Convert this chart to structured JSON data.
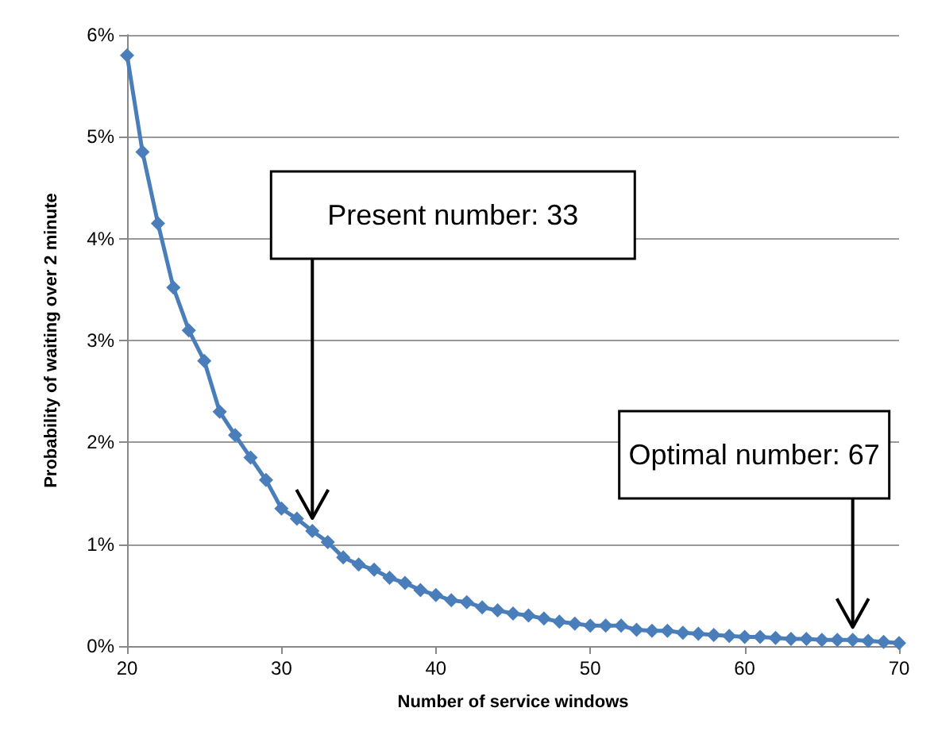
{
  "chart_data": {
    "type": "line",
    "xlabel": "Number of service windows",
    "ylabel": "Probability of waiting over 2 minute",
    "x": [
      20,
      21,
      22,
      23,
      24,
      25,
      26,
      27,
      28,
      29,
      30,
      31,
      32,
      33,
      34,
      35,
      36,
      37,
      38,
      39,
      40,
      41,
      42,
      43,
      44,
      45,
      46,
      47,
      48,
      49,
      50,
      51,
      52,
      53,
      54,
      55,
      56,
      57,
      58,
      59,
      60,
      61,
      62,
      63,
      64,
      65,
      66,
      67,
      68,
      69,
      70
    ],
    "series": [
      {
        "color": "#4a7ebb",
        "values": [
          5.8,
          4.85,
          4.15,
          3.52,
          3.1,
          2.8,
          2.3,
          2.07,
          1.85,
          1.63,
          1.35,
          1.25,
          1.13,
          1.02,
          0.87,
          0.8,
          0.75,
          0.67,
          0.62,
          0.55,
          0.5,
          0.45,
          0.43,
          0.38,
          0.35,
          0.32,
          0.3,
          0.27,
          0.24,
          0.22,
          0.2,
          0.2,
          0.2,
          0.16,
          0.15,
          0.15,
          0.13,
          0.12,
          0.11,
          0.1,
          0.09,
          0.09,
          0.08,
          0.07,
          0.07,
          0.06,
          0.06,
          0.06,
          0.05,
          0.04,
          0.03
        ]
      }
    ],
    "xlim": [
      20,
      70
    ],
    "xticks": [
      20,
      30,
      40,
      50,
      60,
      70
    ],
    "ylim": [
      0,
      6
    ],
    "yticks": [
      {
        "value": 0,
        "label": "0%"
      },
      {
        "value": 1,
        "label": "1%"
      },
      {
        "value": 2,
        "label": "2%"
      },
      {
        "value": 3,
        "label": "3%"
      },
      {
        "value": 4,
        "label": "4%"
      },
      {
        "value": 5,
        "label": "5%"
      },
      {
        "value": 6,
        "label": "6%"
      }
    ],
    "grid": "y",
    "marker": "diamond",
    "line_style": "solid",
    "annotations": [
      {
        "text": "Present number: 33",
        "x": 32,
        "y": 1.13
      },
      {
        "text": "Optimal number: 67",
        "x": 67,
        "y": 0.06
      }
    ]
  }
}
